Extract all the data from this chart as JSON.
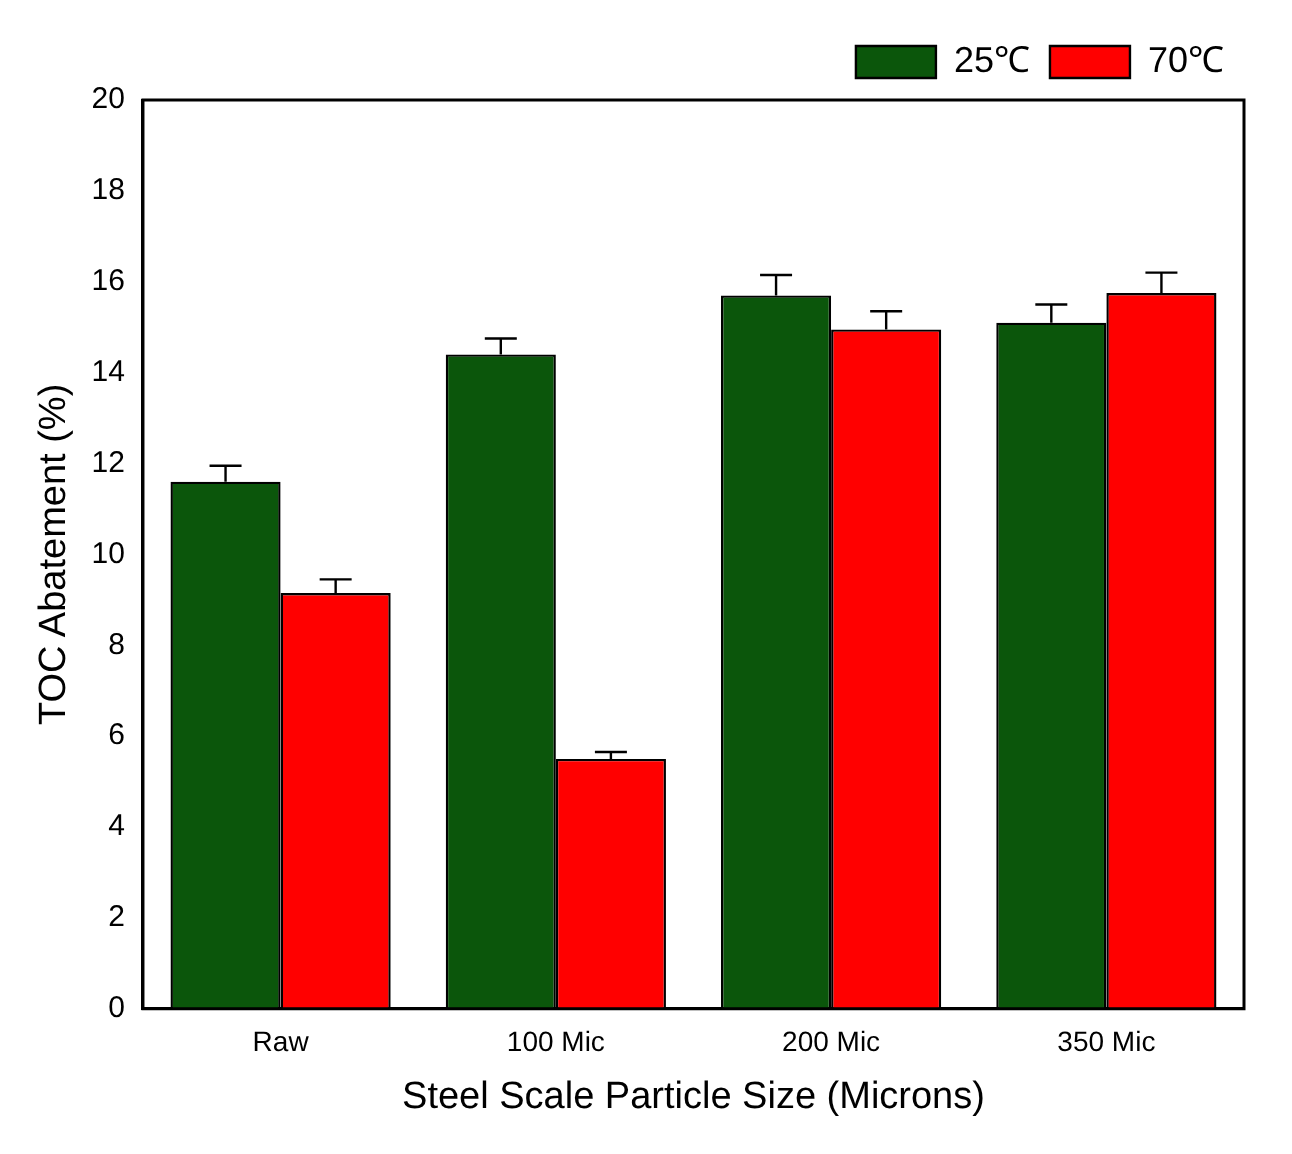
{
  "chart_data": {
    "type": "bar",
    "xlabel": "Steel Scale Particle Size (Microns)",
    "ylabel": "TOC Abatement (%)",
    "categories": [
      "Raw",
      "100 Mic",
      "200 Mic",
      "350 Mic"
    ],
    "series": [
      {
        "name": "25℃",
        "color": "#0b560b",
        "values": [
          11.6,
          14.4,
          15.7,
          15.1
        ],
        "errors": [
          [
            11.6,
            11.95
          ],
          [
            14.4,
            14.75
          ],
          [
            15.7,
            16.15
          ],
          [
            15.1,
            15.5
          ]
        ]
      },
      {
        "name": "70℃",
        "color": "#ff0000",
        "values": [
          9.15,
          5.5,
          14.95,
          15.75
        ],
        "errors": [
          [
            9.15,
            9.45
          ],
          [
            5.5,
            5.65
          ],
          [
            14.95,
            15.35
          ],
          [
            15.75,
            16.2
          ]
        ]
      }
    ],
    "ylim": [
      0,
      20
    ],
    "yticks": [
      0,
      2,
      4,
      6,
      8,
      10,
      12,
      14,
      16,
      18,
      20
    ],
    "grid": false,
    "legend": "top right"
  }
}
